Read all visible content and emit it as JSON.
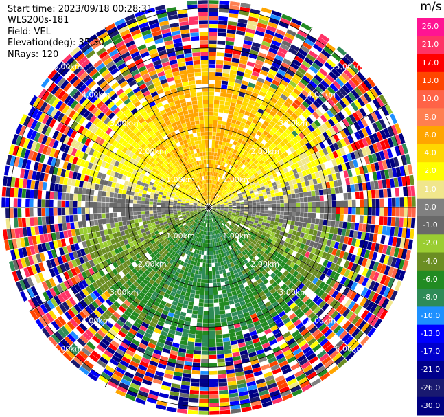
{
  "chart_data": {
    "type": "heatmap",
    "chart_kind": "polar ppi radar scan",
    "header": {
      "start_time": "Start time: 2023/09/18 00:28:31",
      "instrument": "WLS200s-181",
      "field": "Field: VEL",
      "elevation": "Elevation(deg): 35.30",
      "nrays": "NRays: 120"
    },
    "nrays": 120,
    "max_range_km": 5.2,
    "range_rings_km": [
      1.0,
      2.0,
      3.0,
      4.0,
      5.0
    ],
    "ring_labels": [
      "1.00km",
      "2.00km",
      "3.00km",
      "4.00km",
      "5.00km"
    ],
    "spokes_deg": [
      0,
      30,
      60,
      90,
      120,
      150,
      180,
      210,
      240,
      270,
      300,
      330
    ],
    "field_description": {
      "north_sector_velocity": 6.0,
      "south_sector_velocity": -6.0,
      "noise_beyond_km": 3.4,
      "missing_color": "#ffffff"
    },
    "colorbar": {
      "unit": "m/s",
      "ticks": [
        "26.0",
        "21.0",
        "17.0",
        "13.0",
        "10.0",
        "8.0",
        "6.0",
        "4.0",
        "2.0",
        "1.0",
        "0.0",
        "-1.0",
        "-2.0",
        "-4.0",
        "-6.0",
        "-8.0",
        "-10.0",
        "-13.0",
        "-17.0",
        "-21.0",
        "-26.0",
        "-30.0"
      ],
      "colors": [
        "#ff1493",
        "#ff3366",
        "#ff0000",
        "#ff4500",
        "#ff6347",
        "#ff7f50",
        "#ffa500",
        "#ffd700",
        "#ffff00",
        "#f0e68c",
        "#808080",
        "#696969",
        "#9acd32",
        "#6b8e23",
        "#228b22",
        "#2e8b57",
        "#1e90ff",
        "#0000ff",
        "#0000cd",
        "#00008b",
        "#191970",
        "#000080"
      ]
    }
  }
}
